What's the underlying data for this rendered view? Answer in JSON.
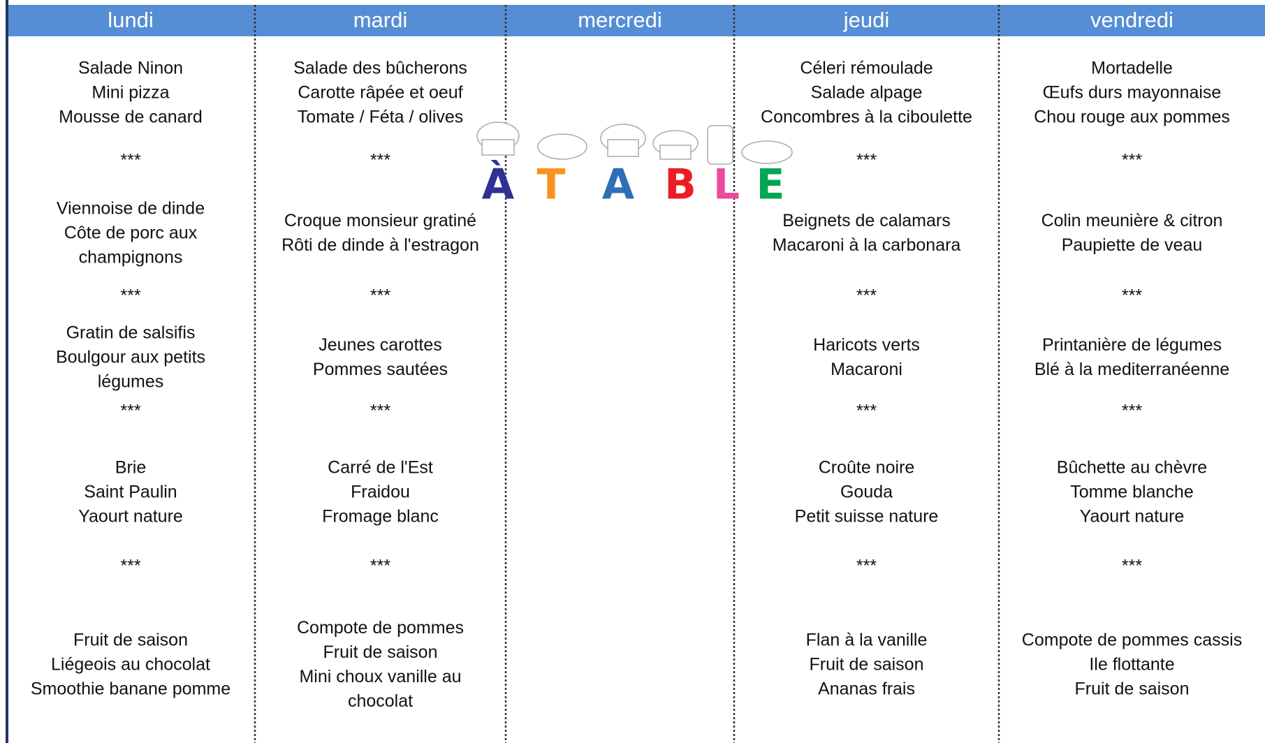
{
  "logo": [
    "À",
    "T",
    "A",
    "B",
    "L",
    "E"
  ],
  "days": [
    {
      "name": "lundi",
      "blocks": [
        [
          "Salade Ninon",
          "Mini pizza",
          "Mousse de canard"
        ],
        [
          "***"
        ],
        [
          "Viennoise de dinde",
          "Côte de porc aux",
          "champignons"
        ],
        [
          "***"
        ],
        [
          "Gratin de salsifis",
          "Boulgour aux petits",
          "légumes"
        ],
        [
          "***"
        ],
        [
          "Brie",
          "Saint Paulin",
          "Yaourt nature"
        ],
        [
          "***"
        ],
        [
          "Fruit de saison",
          "Liégeois au chocolat",
          "Smoothie banane pomme"
        ]
      ]
    },
    {
      "name": "mardi",
      "blocks": [
        [
          "Salade des bûcherons",
          "Carotte râpée et oeuf",
          "Tomate / Féta / olives"
        ],
        [
          "***"
        ],
        [
          "Croque monsieur gratiné",
          "Rôti de dinde à l'estragon"
        ],
        [
          "***"
        ],
        [
          "Jeunes carottes",
          "Pommes sautées"
        ],
        [
          "***"
        ],
        [
          "Carré de l'Est",
          "Fraidou",
          "Fromage blanc"
        ],
        [
          "***"
        ],
        [
          "Compote de pommes",
          "Fruit de saison",
          "Mini choux vanille au",
          "chocolat"
        ]
      ]
    },
    {
      "name": "mercredi",
      "blocks": []
    },
    {
      "name": "jeudi",
      "blocks": [
        [
          "Céleri rémoulade",
          "Salade alpage",
          "Concombres à la ciboulette"
        ],
        [
          "***"
        ],
        [
          "Beignets de calamars",
          "Macaroni à la carbonara"
        ],
        [
          "***"
        ],
        [
          "Haricots verts",
          "Macaroni"
        ],
        [
          "***"
        ],
        [
          "Croûte noire",
          "Gouda",
          "Petit suisse nature"
        ],
        [
          "***"
        ],
        [
          "Flan à la vanille",
          "Fruit de saison",
          "Ananas frais"
        ]
      ]
    },
    {
      "name": "vendredi",
      "blocks": [
        [
          "Mortadelle",
          "Œufs durs mayonnaise",
          "Chou rouge aux pommes"
        ],
        [
          "***"
        ],
        [
          "Colin meunière & citron",
          "Paupiette de veau"
        ],
        [
          "***"
        ],
        [
          "Printanière de légumes",
          "Blé à la mediterranéenne"
        ],
        [
          "***"
        ],
        [
          "Bûchette au chèvre",
          "Tomme blanche",
          "Yaourt nature"
        ],
        [
          "***"
        ],
        [
          "Compote de pommes cassis",
          "Ile flottante",
          "Fruit de saison"
        ]
      ]
    }
  ]
}
